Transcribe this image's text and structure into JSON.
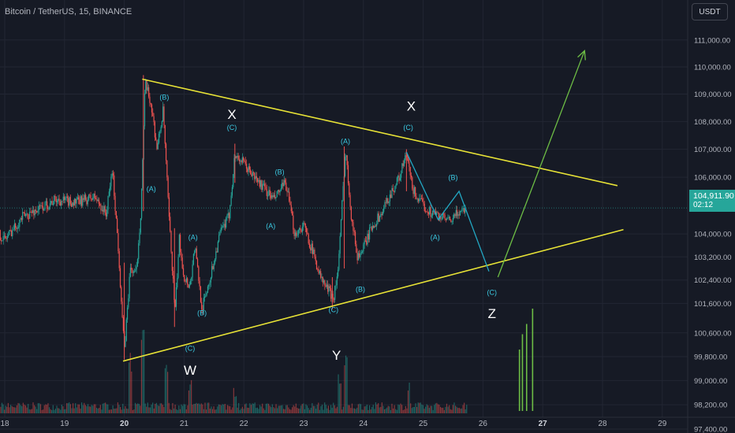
{
  "header": {
    "symbol_title": "Bitcoin / TetherUS, 15, BINANCE",
    "currency_button": "USDT"
  },
  "last_price": {
    "value": 104911.9,
    "label": "104,911.90",
    "countdown": "02:12",
    "color": "#26a69a"
  },
  "colors": {
    "background": "#161a25",
    "grid": "#222633",
    "axis_text": "#b2b5be",
    "up": "#26a69a",
    "down": "#ef5350",
    "triangle": "#e8e336",
    "projection_cyan": "#22a8c4",
    "projection_green": "#6dbd45",
    "wave_label": "#3bc9e2",
    "big_label": "#ffffff"
  },
  "chart_data": {
    "type": "candlestick",
    "x_axis": {
      "unit": "day",
      "range": [
        17.55,
        29.9
      ],
      "ticks": [
        18,
        19,
        20,
        21,
        22,
        23,
        24,
        25,
        26,
        27,
        28,
        29
      ],
      "tick_labels": [
        "18",
        "19",
        "20",
        "21",
        "22",
        "23",
        "24",
        "25",
        "26",
        "27",
        "28",
        "29"
      ],
      "bold_ticks": [
        "20",
        "27"
      ]
    },
    "y_axis": {
      "unit": "USDT",
      "scale": "log",
      "range": [
        97000,
        112500
      ],
      "ticks": [
        111000,
        110000,
        109000,
        108000,
        107000,
        106000,
        104000,
        103200,
        102400,
        101600,
        100600,
        99800,
        99000,
        98200,
        97400
      ],
      "tick_labels": [
        "111,000.00",
        "110,000.00",
        "109,000.00",
        "108,000.00",
        "107,000.00",
        "106,000.00",
        "104,000.00",
        "103,200.00",
        "102,400.00",
        "101,600.00",
        "100,600.00",
        "99,800.00",
        "99,000.00",
        "98,200.00",
        "97,400.00"
      ]
    },
    "price_path": [
      [
        17.55,
        104700
      ],
      [
        17.8,
        104200
      ],
      [
        18.0,
        103800
      ],
      [
        18.3,
        104600
      ],
      [
        18.6,
        104900
      ],
      [
        18.85,
        105200
      ],
      [
        19.2,
        105100
      ],
      [
        19.5,
        105300
      ],
      [
        19.7,
        104700
      ],
      [
        19.8,
        106300
      ],
      [
        19.9,
        103500
      ],
      [
        20.0,
        99950
      ],
      [
        20.1,
        102800
      ],
      [
        20.2,
        102600
      ],
      [
        20.28,
        104900
      ],
      [
        20.35,
        109400
      ],
      [
        20.45,
        108600
      ],
      [
        20.55,
        107000
      ],
      [
        20.65,
        108400
      ],
      [
        20.75,
        104500
      ],
      [
        20.85,
        101300
      ],
      [
        20.92,
        103800
      ],
      [
        21.0,
        102500
      ],
      [
        21.1,
        102200
      ],
      [
        21.18,
        103600
      ],
      [
        21.3,
        101400
      ],
      [
        21.45,
        102600
      ],
      [
        21.6,
        104000
      ],
      [
        21.75,
        104600
      ],
      [
        21.85,
        106800
      ],
      [
        21.95,
        106600
      ],
      [
        22.1,
        106200
      ],
      [
        22.3,
        105700
      ],
      [
        22.5,
        105200
      ],
      [
        22.7,
        105800
      ],
      [
        22.85,
        104000
      ],
      [
        23.0,
        104300
      ],
      [
        23.15,
        103400
      ],
      [
        23.3,
        102400
      ],
      [
        23.5,
        101800
      ],
      [
        23.58,
        102800
      ],
      [
        23.7,
        107000
      ],
      [
        23.8,
        104600
      ],
      [
        23.9,
        103200
      ],
      [
        24.0,
        103500
      ],
      [
        24.15,
        104300
      ],
      [
        24.3,
        104700
      ],
      [
        24.45,
        105400
      ],
      [
        24.6,
        106000
      ],
      [
        24.72,
        106800
      ],
      [
        24.82,
        105600
      ],
      [
        24.95,
        105100
      ],
      [
        25.1,
        104800
      ],
      [
        25.3,
        104600
      ],
      [
        25.45,
        104400
      ],
      [
        25.6,
        104800
      ],
      [
        25.72,
        104900
      ]
    ],
    "volume_spikes": [
      {
        "day": 26.6,
        "height_fraction": 0.6
      },
      {
        "day": 26.65,
        "height_fraction": 0.75
      },
      {
        "day": 26.72,
        "height_fraction": 0.85
      },
      {
        "day": 26.82,
        "height_fraction": 1.0
      }
    ],
    "annotations": {
      "triangle_upper": [
        [
          20.3,
          109550
        ],
        [
          28.25,
          105700
        ]
      ],
      "triangle_lower": [
        [
          19.98,
          99650
        ],
        [
          28.35,
          104150
        ]
      ],
      "projection_cyan": [
        [
          24.72,
          106900
        ],
        [
          25.25,
          104500
        ],
        [
          25.6,
          105500
        ],
        [
          26.1,
          102700
        ]
      ],
      "projection_green_arrow": [
        [
          26.25,
          102500
        ],
        [
          27.7,
          110600
        ]
      ],
      "wave_labels_large": [
        {
          "text": "X",
          "day": 21.8,
          "price": 108100
        },
        {
          "text": "X",
          "day": 24.8,
          "price": 108400
        },
        {
          "text": "W",
          "day": 21.1,
          "price": 99200
        },
        {
          "text": "Y",
          "day": 23.55,
          "price": 99700
        },
        {
          "text": "Z",
          "day": 26.15,
          "price": 101100
        }
      ],
      "wave_labels_small": [
        {
          "text": "(B)",
          "day": 20.67,
          "price": 108800
        },
        {
          "text": "(C)",
          "day": 21.8,
          "price": 107700
        },
        {
          "text": "(A)",
          "day": 20.45,
          "price": 105500
        },
        {
          "text": "(A)",
          "day": 21.15,
          "price": 103800
        },
        {
          "text": "(B)",
          "day": 21.3,
          "price": 101200
        },
        {
          "text": "(C)",
          "day": 21.1,
          "price": 100000
        },
        {
          "text": "(B)",
          "day": 22.6,
          "price": 106100
        },
        {
          "text": "(A)",
          "day": 22.45,
          "price": 104200
        },
        {
          "text": "(A)",
          "day": 23.7,
          "price": 107200
        },
        {
          "text": "(B)",
          "day": 23.95,
          "price": 102000
        },
        {
          "text": "(C)",
          "day": 23.5,
          "price": 101300
        },
        {
          "text": "(C)",
          "day": 24.75,
          "price": 107700
        },
        {
          "text": "(B)",
          "day": 25.5,
          "price": 105900
        },
        {
          "text": "(A)",
          "day": 25.2,
          "price": 103800
        },
        {
          "text": "(C)",
          "day": 26.15,
          "price": 101900
        }
      ]
    }
  }
}
